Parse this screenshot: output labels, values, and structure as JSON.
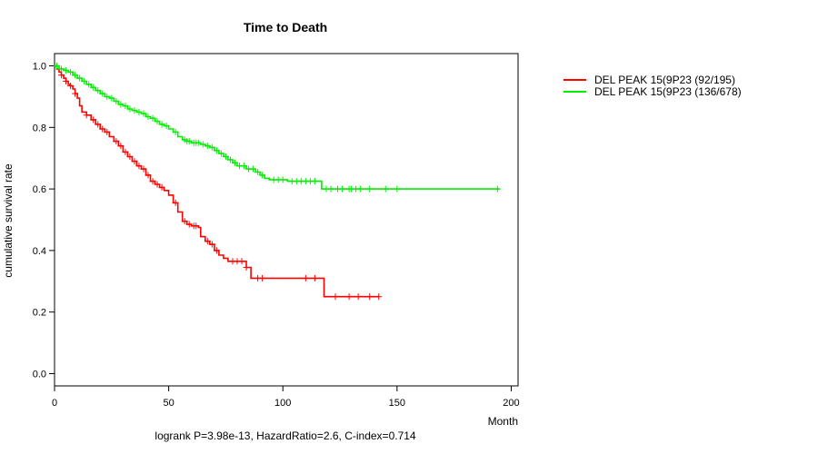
{
  "chart_data": {
    "type": "line",
    "subtype": "kaplan-meier",
    "title": "Time to Death",
    "xlabel": "Month",
    "ylabel": "cumulative survival rate",
    "xlim": [
      0,
      203
    ],
    "ylim": [
      -0.04,
      1.04
    ],
    "xticks": [
      0,
      50,
      100,
      150,
      200
    ],
    "yticks": [
      0.0,
      0.2,
      0.4,
      0.6,
      0.8,
      1.0
    ],
    "xtick_labels": [
      "0",
      "50",
      "100",
      "150",
      "200"
    ],
    "ytick_labels": [
      "0.0",
      "0.2",
      "0.4",
      "0.6",
      "0.8",
      "1.0"
    ],
    "footer": "logrank P=3.98e-13, HazardRatio=2.6, C-index=0.714",
    "legend_position": "top-right outside",
    "series": [
      {
        "name": "DEL PEAK 15(9P23 (92/195)",
        "color": "#ff0000",
        "steps": [
          [
            0,
            1.0
          ],
          [
            1,
            0.99
          ],
          [
            2,
            0.98
          ],
          [
            3,
            0.97
          ],
          [
            4,
            0.96
          ],
          [
            5,
            0.95
          ],
          [
            6,
            0.94
          ],
          [
            7,
            0.935
          ],
          [
            8,
            0.925
          ],
          [
            9,
            0.91
          ],
          [
            10,
            0.895
          ],
          [
            11,
            0.87
          ],
          [
            12,
            0.85
          ],
          [
            14,
            0.84
          ],
          [
            16,
            0.825
          ],
          [
            18,
            0.81
          ],
          [
            20,
            0.795
          ],
          [
            22,
            0.785
          ],
          [
            24,
            0.77
          ],
          [
            26,
            0.755
          ],
          [
            28,
            0.74
          ],
          [
            30,
            0.72
          ],
          [
            32,
            0.705
          ],
          [
            34,
            0.69
          ],
          [
            36,
            0.675
          ],
          [
            38,
            0.665
          ],
          [
            40,
            0.645
          ],
          [
            42,
            0.625
          ],
          [
            44,
            0.615
          ],
          [
            46,
            0.605
          ],
          [
            48,
            0.595
          ],
          [
            50,
            0.58
          ],
          [
            52,
            0.555
          ],
          [
            54,
            0.525
          ],
          [
            56,
            0.495
          ],
          [
            58,
            0.485
          ],
          [
            60,
            0.48
          ],
          [
            63,
            0.475
          ],
          [
            64,
            0.445
          ],
          [
            66,
            0.43
          ],
          [
            68,
            0.42
          ],
          [
            70,
            0.4
          ],
          [
            72,
            0.385
          ],
          [
            74,
            0.375
          ],
          [
            76,
            0.365
          ],
          [
            84,
            0.345
          ],
          [
            86,
            0.31
          ],
          [
            118,
            0.25
          ],
          [
            142,
            0.25
          ]
        ],
        "censor_x": [
          3,
          5,
          7,
          9,
          14,
          17,
          19,
          21,
          23,
          27,
          29,
          31,
          33,
          35,
          37,
          39,
          41,
          43,
          45,
          47,
          53,
          57,
          59,
          61,
          62,
          67,
          69,
          71,
          78,
          80,
          82,
          84,
          89,
          91,
          110,
          114,
          123,
          129,
          133,
          138,
          142
        ]
      },
      {
        "name": "DEL PEAK 15(9P23 (136/678)",
        "color": "#00ee00",
        "steps": [
          [
            0,
            1.0
          ],
          [
            2,
            0.99
          ],
          [
            4,
            0.985
          ],
          [
            6,
            0.98
          ],
          [
            8,
            0.97
          ],
          [
            10,
            0.96
          ],
          [
            12,
            0.95
          ],
          [
            14,
            0.94
          ],
          [
            16,
            0.93
          ],
          [
            18,
            0.92
          ],
          [
            20,
            0.91
          ],
          [
            22,
            0.9
          ],
          [
            24,
            0.895
          ],
          [
            26,
            0.885
          ],
          [
            28,
            0.875
          ],
          [
            30,
            0.87
          ],
          [
            32,
            0.86
          ],
          [
            34,
            0.855
          ],
          [
            36,
            0.85
          ],
          [
            38,
            0.845
          ],
          [
            40,
            0.835
          ],
          [
            42,
            0.83
          ],
          [
            44,
            0.82
          ],
          [
            46,
            0.81
          ],
          [
            48,
            0.805
          ],
          [
            50,
            0.795
          ],
          [
            52,
            0.785
          ],
          [
            54,
            0.77
          ],
          [
            56,
            0.76
          ],
          [
            58,
            0.755
          ],
          [
            60,
            0.75
          ],
          [
            64,
            0.745
          ],
          [
            66,
            0.74
          ],
          [
            68,
            0.735
          ],
          [
            70,
            0.725
          ],
          [
            72,
            0.715
          ],
          [
            74,
            0.705
          ],
          [
            76,
            0.695
          ],
          [
            78,
            0.685
          ],
          [
            80,
            0.675
          ],
          [
            84,
            0.665
          ],
          [
            88,
            0.655
          ],
          [
            90,
            0.645
          ],
          [
            92,
            0.635
          ],
          [
            94,
            0.63
          ],
          [
            102,
            0.625
          ],
          [
            117,
            0.6
          ],
          [
            195,
            0.6
          ]
        ],
        "censor_x": [
          1,
          3,
          5,
          7,
          9,
          11,
          13,
          15,
          17,
          19,
          21,
          23,
          25,
          27,
          29,
          31,
          33,
          35,
          37,
          39,
          41,
          43,
          45,
          47,
          49,
          53,
          57,
          58,
          59,
          61,
          62,
          63,
          65,
          67,
          69,
          71,
          73,
          75,
          77,
          79,
          81,
          83,
          85,
          87,
          89,
          91,
          96,
          98,
          100,
          104,
          106,
          108,
          110,
          112,
          114,
          119,
          121,
          124,
          126,
          129,
          130,
          132,
          134,
          138,
          145,
          150,
          194
        ]
      }
    ]
  }
}
